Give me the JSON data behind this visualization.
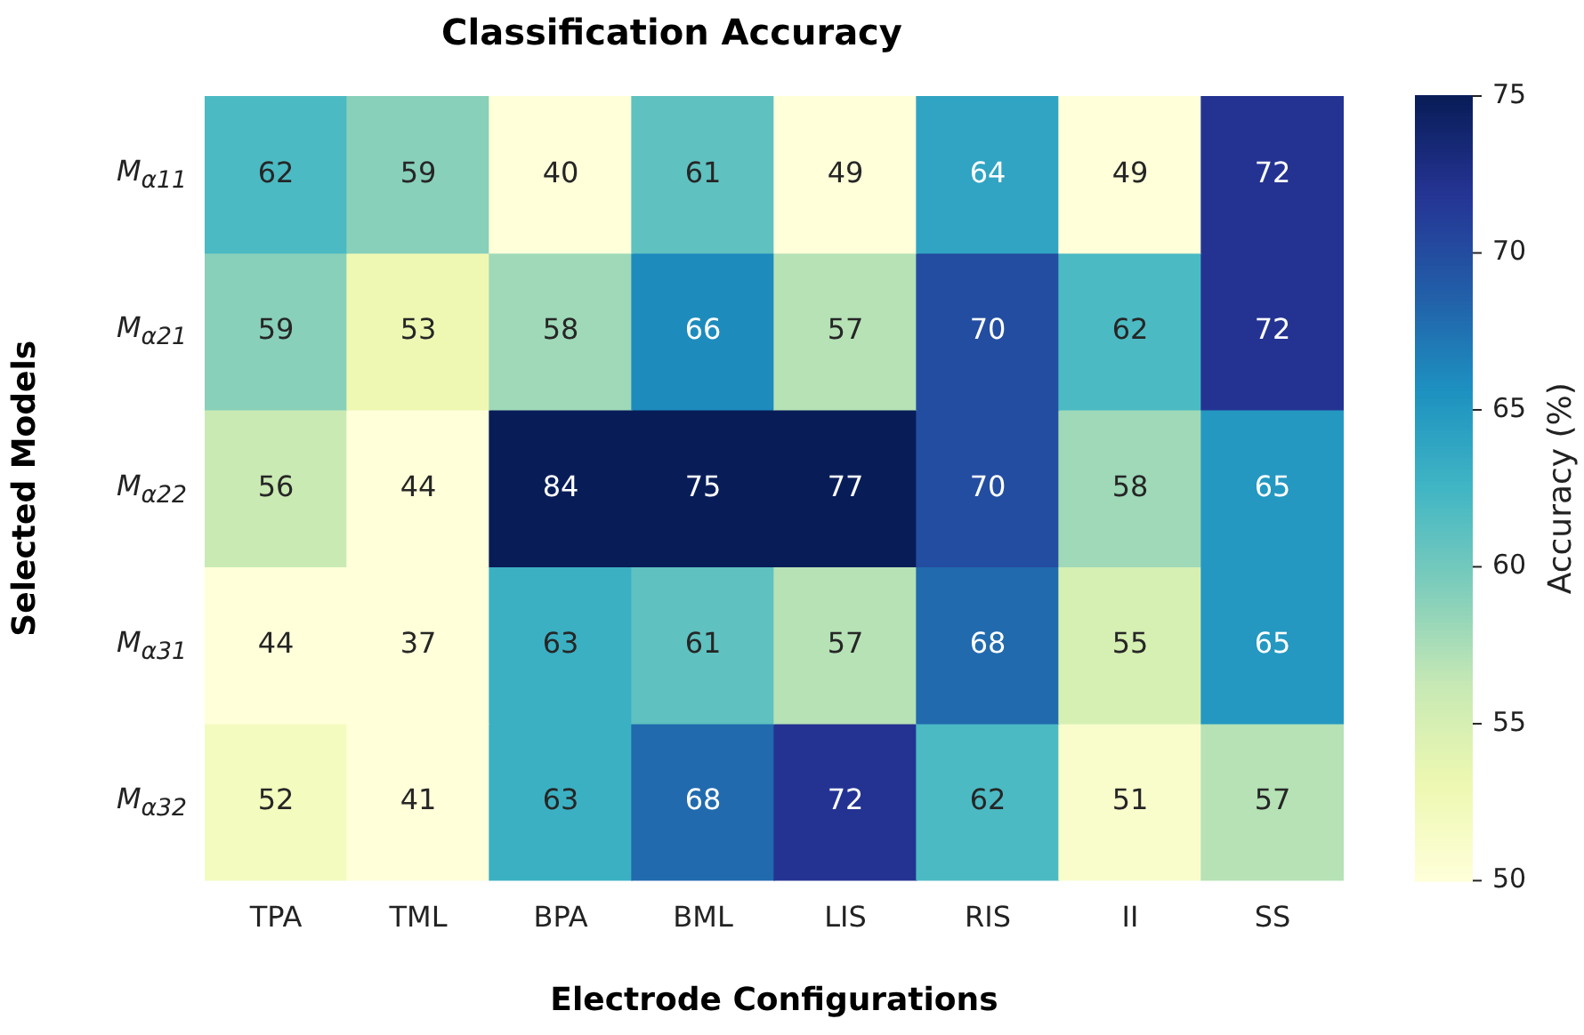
{
  "chart_data": {
    "type": "heatmap",
    "title": "Classification Accuracy",
    "xlabel": "Electrode Configurations",
    "ylabel": "Selected Models",
    "clabel": "Accuracy (%)",
    "categories": [
      "TPA",
      "TML",
      "BPA",
      "BML",
      "LIS",
      "RIS",
      "II",
      "SS"
    ],
    "y_categories": [
      "M$_{α11}$",
      "M$_{α21}$",
      "M$_{α22}$",
      "M$_{α31}$",
      "M$_{α32}$"
    ],
    "cells": [
      [
        62,
        59,
        40,
        61,
        49,
        64,
        49,
        72
      ],
      [
        59,
        53,
        58,
        66,
        57,
        70,
        62,
        72
      ],
      [
        56,
        44,
        84,
        75,
        77,
        70,
        58,
        65
      ],
      [
        44,
        37,
        63,
        61,
        57,
        68,
        55,
        65
      ],
      [
        52,
        41,
        63,
        68,
        72,
        62,
        51,
        57
      ]
    ],
    "clim": [
      50,
      75
    ],
    "cticks": [
      50,
      55,
      60,
      65,
      70,
      75
    ],
    "data_labels": true
  }
}
